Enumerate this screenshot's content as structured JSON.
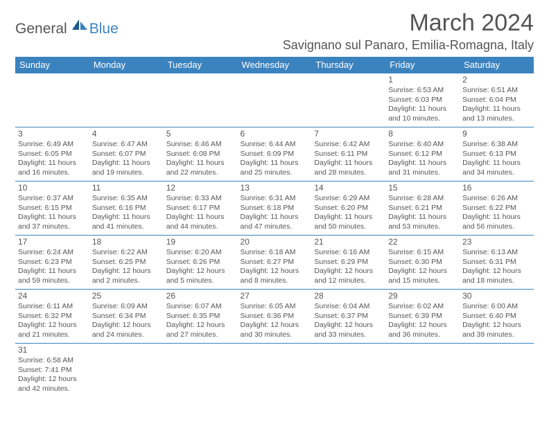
{
  "logo": {
    "part1": "General",
    "part2": "Blue"
  },
  "title": "March 2024",
  "location": "Savignano sul Panaro, Emilia-Romagna, Italy",
  "colors": {
    "header_bg": "#3b83bf",
    "header_text": "#ffffff",
    "border": "#3b83bf",
    "text": "#565656",
    "logo_gray": "#555555",
    "logo_blue": "#3b83bf"
  },
  "weekdays": [
    "Sunday",
    "Monday",
    "Tuesday",
    "Wednesday",
    "Thursday",
    "Friday",
    "Saturday"
  ],
  "weeks": [
    [
      null,
      null,
      null,
      null,
      null,
      {
        "d": "1",
        "sr": "Sunrise: 6:53 AM",
        "ss": "Sunset: 6:03 PM",
        "dl1": "Daylight: 11 hours",
        "dl2": "and 10 minutes."
      },
      {
        "d": "2",
        "sr": "Sunrise: 6:51 AM",
        "ss": "Sunset: 6:04 PM",
        "dl1": "Daylight: 11 hours",
        "dl2": "and 13 minutes."
      }
    ],
    [
      {
        "d": "3",
        "sr": "Sunrise: 6:49 AM",
        "ss": "Sunset: 6:05 PM",
        "dl1": "Daylight: 11 hours",
        "dl2": "and 16 minutes."
      },
      {
        "d": "4",
        "sr": "Sunrise: 6:47 AM",
        "ss": "Sunset: 6:07 PM",
        "dl1": "Daylight: 11 hours",
        "dl2": "and 19 minutes."
      },
      {
        "d": "5",
        "sr": "Sunrise: 6:46 AM",
        "ss": "Sunset: 6:08 PM",
        "dl1": "Daylight: 11 hours",
        "dl2": "and 22 minutes."
      },
      {
        "d": "6",
        "sr": "Sunrise: 6:44 AM",
        "ss": "Sunset: 6:09 PM",
        "dl1": "Daylight: 11 hours",
        "dl2": "and 25 minutes."
      },
      {
        "d": "7",
        "sr": "Sunrise: 6:42 AM",
        "ss": "Sunset: 6:11 PM",
        "dl1": "Daylight: 11 hours",
        "dl2": "and 28 minutes."
      },
      {
        "d": "8",
        "sr": "Sunrise: 6:40 AM",
        "ss": "Sunset: 6:12 PM",
        "dl1": "Daylight: 11 hours",
        "dl2": "and 31 minutes."
      },
      {
        "d": "9",
        "sr": "Sunrise: 6:38 AM",
        "ss": "Sunset: 6:13 PM",
        "dl1": "Daylight: 11 hours",
        "dl2": "and 34 minutes."
      }
    ],
    [
      {
        "d": "10",
        "sr": "Sunrise: 6:37 AM",
        "ss": "Sunset: 6:15 PM",
        "dl1": "Daylight: 11 hours",
        "dl2": "and 37 minutes."
      },
      {
        "d": "11",
        "sr": "Sunrise: 6:35 AM",
        "ss": "Sunset: 6:16 PM",
        "dl1": "Daylight: 11 hours",
        "dl2": "and 41 minutes."
      },
      {
        "d": "12",
        "sr": "Sunrise: 6:33 AM",
        "ss": "Sunset: 6:17 PM",
        "dl1": "Daylight: 11 hours",
        "dl2": "and 44 minutes."
      },
      {
        "d": "13",
        "sr": "Sunrise: 6:31 AM",
        "ss": "Sunset: 6:18 PM",
        "dl1": "Daylight: 11 hours",
        "dl2": "and 47 minutes."
      },
      {
        "d": "14",
        "sr": "Sunrise: 6:29 AM",
        "ss": "Sunset: 6:20 PM",
        "dl1": "Daylight: 11 hours",
        "dl2": "and 50 minutes."
      },
      {
        "d": "15",
        "sr": "Sunrise: 6:28 AM",
        "ss": "Sunset: 6:21 PM",
        "dl1": "Daylight: 11 hours",
        "dl2": "and 53 minutes."
      },
      {
        "d": "16",
        "sr": "Sunrise: 6:26 AM",
        "ss": "Sunset: 6:22 PM",
        "dl1": "Daylight: 11 hours",
        "dl2": "and 56 minutes."
      }
    ],
    [
      {
        "d": "17",
        "sr": "Sunrise: 6:24 AM",
        "ss": "Sunset: 6:23 PM",
        "dl1": "Daylight: 11 hours",
        "dl2": "and 59 minutes."
      },
      {
        "d": "18",
        "sr": "Sunrise: 6:22 AM",
        "ss": "Sunset: 6:25 PM",
        "dl1": "Daylight: 12 hours",
        "dl2": "and 2 minutes."
      },
      {
        "d": "19",
        "sr": "Sunrise: 6:20 AM",
        "ss": "Sunset: 6:26 PM",
        "dl1": "Daylight: 12 hours",
        "dl2": "and 5 minutes."
      },
      {
        "d": "20",
        "sr": "Sunrise: 6:18 AM",
        "ss": "Sunset: 6:27 PM",
        "dl1": "Daylight: 12 hours",
        "dl2": "and 8 minutes."
      },
      {
        "d": "21",
        "sr": "Sunrise: 6:16 AM",
        "ss": "Sunset: 6:29 PM",
        "dl1": "Daylight: 12 hours",
        "dl2": "and 12 minutes."
      },
      {
        "d": "22",
        "sr": "Sunrise: 6:15 AM",
        "ss": "Sunset: 6:30 PM",
        "dl1": "Daylight: 12 hours",
        "dl2": "and 15 minutes."
      },
      {
        "d": "23",
        "sr": "Sunrise: 6:13 AM",
        "ss": "Sunset: 6:31 PM",
        "dl1": "Daylight: 12 hours",
        "dl2": "and 18 minutes."
      }
    ],
    [
      {
        "d": "24",
        "sr": "Sunrise: 6:11 AM",
        "ss": "Sunset: 6:32 PM",
        "dl1": "Daylight: 12 hours",
        "dl2": "and 21 minutes."
      },
      {
        "d": "25",
        "sr": "Sunrise: 6:09 AM",
        "ss": "Sunset: 6:34 PM",
        "dl1": "Daylight: 12 hours",
        "dl2": "and 24 minutes."
      },
      {
        "d": "26",
        "sr": "Sunrise: 6:07 AM",
        "ss": "Sunset: 6:35 PM",
        "dl1": "Daylight: 12 hours",
        "dl2": "and 27 minutes."
      },
      {
        "d": "27",
        "sr": "Sunrise: 6:05 AM",
        "ss": "Sunset: 6:36 PM",
        "dl1": "Daylight: 12 hours",
        "dl2": "and 30 minutes."
      },
      {
        "d": "28",
        "sr": "Sunrise: 6:04 AM",
        "ss": "Sunset: 6:37 PM",
        "dl1": "Daylight: 12 hours",
        "dl2": "and 33 minutes."
      },
      {
        "d": "29",
        "sr": "Sunrise: 6:02 AM",
        "ss": "Sunset: 6:39 PM",
        "dl1": "Daylight: 12 hours",
        "dl2": "and 36 minutes."
      },
      {
        "d": "30",
        "sr": "Sunrise: 6:00 AM",
        "ss": "Sunset: 6:40 PM",
        "dl1": "Daylight: 12 hours",
        "dl2": "and 39 minutes."
      }
    ],
    [
      {
        "d": "31",
        "sr": "Sunrise: 6:58 AM",
        "ss": "Sunset: 7:41 PM",
        "dl1": "Daylight: 12 hours",
        "dl2": "and 42 minutes."
      },
      null,
      null,
      null,
      null,
      null,
      null
    ]
  ]
}
